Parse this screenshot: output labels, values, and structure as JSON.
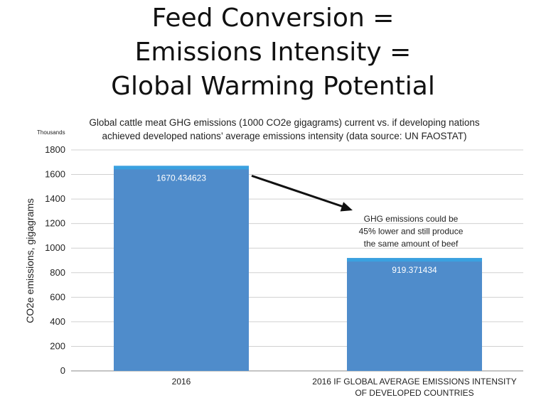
{
  "title_lines": [
    "Feed Conversion =",
    "Emissions Intensity =",
    "Global Warming Potential"
  ],
  "chart_data": {
    "type": "bar",
    "title_lines": [
      "Global cattle meat GHG emissions (1000 CO2e gigagrams) current vs. if developing nations",
      "achieved developed nations’ average emissions intensity (data source: UN FAOSTAT)"
    ],
    "units_label": "Thousands",
    "ylabel": "CO2e emissions, gigagrams",
    "ylim": [
      0,
      1800
    ],
    "yticks": [
      0,
      200,
      400,
      600,
      800,
      1000,
      1200,
      1400,
      1600,
      1800
    ],
    "grid": true,
    "categories": [
      [
        "2016"
      ],
      [
        "2016 IF GLOBAL AVERAGE EMISSIONS INTENSITY",
        "OF DEVELOPED COUNTRIES"
      ]
    ],
    "values": [
      1670.434623,
      919.371434
    ],
    "data_labels": [
      "1670.434623",
      "919.371434"
    ],
    "bar_color": "#4f8ccb",
    "bar_top_color": "#3aa1e0",
    "annotation": {
      "lines": [
        "GHG emissions could be",
        "45% lower and still produce",
        "the same amount of beef"
      ],
      "arrow": "from first bar to second bar"
    }
  }
}
